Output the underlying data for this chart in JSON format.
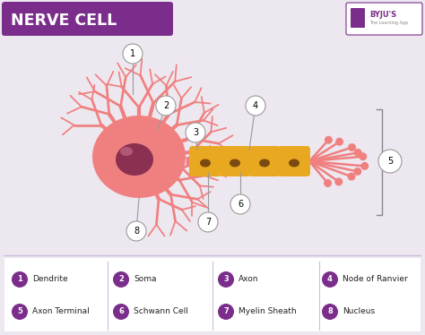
{
  "title": "NERVE CELL",
  "title_bg": "#7B2D8B",
  "title_color": "#FFFFFF",
  "bg_color": "#EDE8F0",
  "legend_bg": "#FFFFFF",
  "legend_color": "#7B2D8B",
  "legend_items": [
    {
      "num": "1",
      "label": "Dendrite"
    },
    {
      "num": "2",
      "label": "Soma"
    },
    {
      "num": "3",
      "label": "Axon"
    },
    {
      "num": "4",
      "label": "Node of Ranvier"
    },
    {
      "num": "5",
      "label": "Axon Terminal"
    },
    {
      "num": "6",
      "label": "Schwann Cell"
    },
    {
      "num": "7",
      "label": "Myelin Sheath"
    },
    {
      "num": "8",
      "label": "Nucleus"
    }
  ],
  "soma_color": "#F08080",
  "nucleus_color": "#8B3050",
  "nucleus_highlight": "#B05878",
  "dendrite_color": "#F08080",
  "axon_color": "#F08080",
  "myelin_color": "#E8A820",
  "myelin_dark": "#7A4A10",
  "terminal_color": "#F08080",
  "byju_bg": "#7B2D8B",
  "label_bg": "#FFFFFF",
  "label_edge": "#999999",
  "divider_color": "#CCBBDD"
}
